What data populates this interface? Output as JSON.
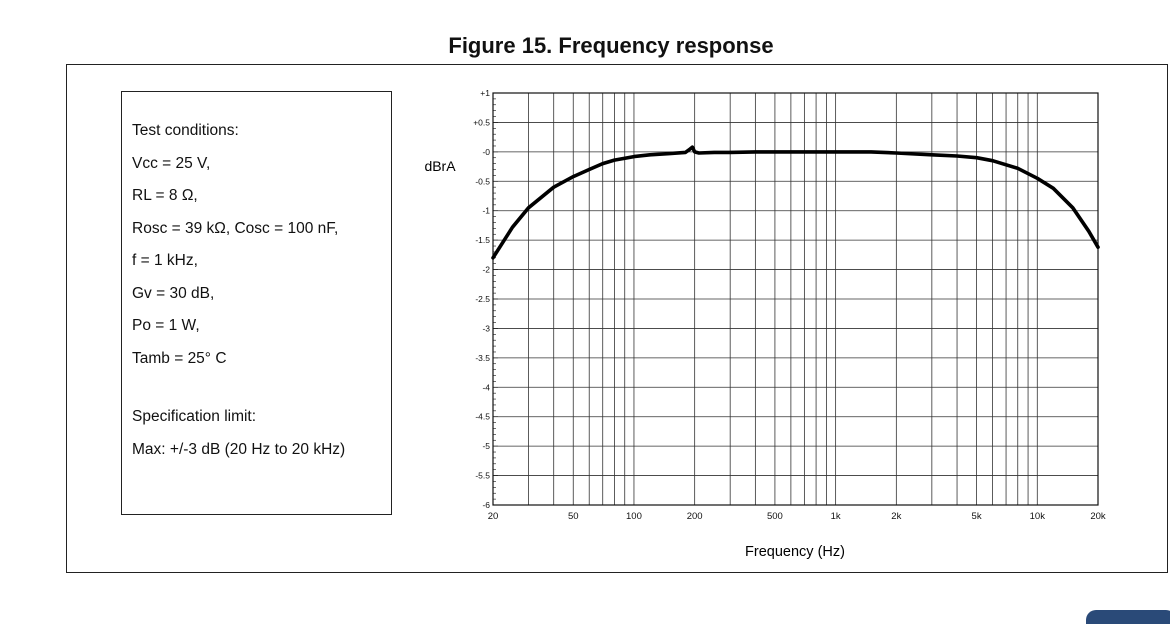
{
  "figure": {
    "title": "Figure 15. Frequency response"
  },
  "conditions": {
    "lines": [
      "Test conditions:",
      "Vcc = 25 V,",
      "RL = 8 Ω,",
      "Rosc = 39 kΩ, Cosc = 100 nF,",
      "f = 1 kHz,",
      "Gv = 30 dB,",
      "Po = 1 W,",
      "Tamb = 25° C",
      "",
      "Specification limit:",
      "Max: +/-3 dB (20 Hz to 20 kHz)"
    ]
  },
  "chart_data": {
    "type": "line",
    "title": "",
    "xlabel": "Frequency (Hz)",
    "ylabel": "dBrA",
    "x_scale": "log",
    "xlim": [
      20,
      20000
    ],
    "ylim": [
      -6,
      1
    ],
    "grid": true,
    "x_ticks": [
      {
        "value": 20,
        "label": "20"
      },
      {
        "value": 50,
        "label": "50"
      },
      {
        "value": 100,
        "label": "100"
      },
      {
        "value": 200,
        "label": "200"
      },
      {
        "value": 500,
        "label": "500"
      },
      {
        "value": 1000,
        "label": "1k"
      },
      {
        "value": 2000,
        "label": "2k"
      },
      {
        "value": 5000,
        "label": "5k"
      },
      {
        "value": 10000,
        "label": "10k"
      },
      {
        "value": 20000,
        "label": "20k"
      }
    ],
    "y_ticks": [
      {
        "value": 1,
        "label": "+1"
      },
      {
        "value": 0.5,
        "label": "+0.5"
      },
      {
        "value": 0,
        "label": "-0"
      },
      {
        "value": -0.5,
        "label": "-0.5"
      },
      {
        "value": -1,
        "label": "-1"
      },
      {
        "value": -1.5,
        "label": "-1.5"
      },
      {
        "value": -2,
        "label": "-2"
      },
      {
        "value": -2.5,
        "label": "-2.5"
      },
      {
        "value": -3,
        "label": "-3"
      },
      {
        "value": -3.5,
        "label": "-3.5"
      },
      {
        "value": -4,
        "label": "-4"
      },
      {
        "value": -4.5,
        "label": "-4.5"
      },
      {
        "value": -5,
        "label": "-5"
      },
      {
        "value": -5.5,
        "label": "-5.5"
      },
      {
        "value": -6,
        "label": "-6"
      }
    ],
    "series": [
      {
        "color": "#000000",
        "x": [
          20,
          25,
          30,
          40,
          50,
          60,
          70,
          80,
          100,
          120,
          150,
          180,
          190,
          195,
          200,
          210,
          250,
          300,
          400,
          500,
          700,
          1000,
          1500,
          2000,
          3000,
          4000,
          5000,
          6000,
          8000,
          10000,
          12000,
          15000,
          18000,
          20000
        ],
        "y": [
          -1.8,
          -1.28,
          -0.95,
          -0.6,
          -0.42,
          -0.3,
          -0.2,
          -0.14,
          -0.08,
          -0.05,
          -0.03,
          -0.01,
          0.05,
          0.08,
          0.0,
          -0.02,
          -0.01,
          -0.01,
          0.0,
          0.0,
          0.0,
          0.0,
          0.0,
          -0.02,
          -0.05,
          -0.07,
          -0.1,
          -0.15,
          -0.28,
          -0.45,
          -0.62,
          -0.95,
          -1.35,
          -1.62
        ]
      }
    ]
  }
}
